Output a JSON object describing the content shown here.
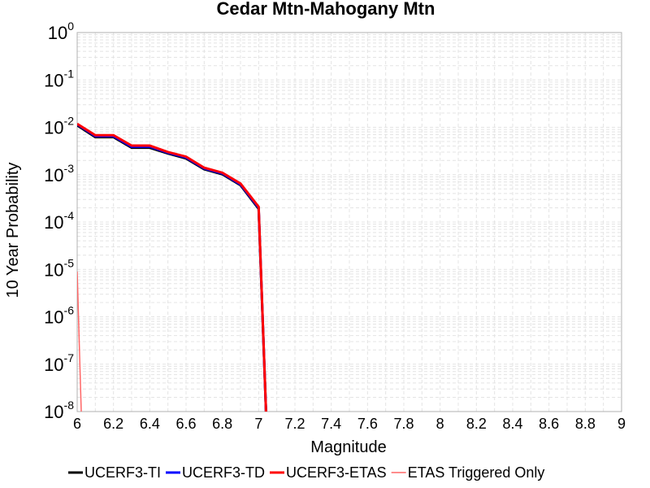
{
  "chart_data": {
    "type": "line",
    "title": "Cedar Mtn-Mahogany Mtn",
    "xlabel": "Magnitude",
    "ylabel": "10 Year Probability",
    "xlim": [
      6,
      9
    ],
    "ylim": [
      1e-08,
      1
    ],
    "yscale": "log",
    "grid": true,
    "legend_position": "bottom",
    "x_ticks": [
      "6",
      "6.2",
      "6.4",
      "6.6",
      "6.8",
      "7",
      "7.2",
      "7.4",
      "7.6",
      "7.8",
      "8",
      "8.2",
      "8.4",
      "8.6",
      "8.8",
      "9"
    ],
    "y_ticks": [
      {
        "base": "10",
        "exp": "0",
        "value": 1
      },
      {
        "base": "10",
        "exp": "-1",
        "value": 0.1
      },
      {
        "base": "10",
        "exp": "-2",
        "value": 0.01
      },
      {
        "base": "10",
        "exp": "-3",
        "value": 0.001
      },
      {
        "base": "10",
        "exp": "-4",
        "value": 0.0001
      },
      {
        "base": "10",
        "exp": "-5",
        "value": 1e-05
      },
      {
        "base": "10",
        "exp": "-6",
        "value": 1e-06
      },
      {
        "base": "10",
        "exp": "-7",
        "value": 1e-07
      },
      {
        "base": "10",
        "exp": "-8",
        "value": 1e-08
      }
    ],
    "series": [
      {
        "name": "UCERF3-TI",
        "color": "#000000",
        "width": 3,
        "x": [
          6.0,
          6.1,
          6.2,
          6.3,
          6.4,
          6.5,
          6.6,
          6.7,
          6.8,
          6.9,
          7.0,
          7.05
        ],
        "y": [
          0.011,
          0.0062,
          0.0062,
          0.0037,
          0.0037,
          0.0028,
          0.0022,
          0.0013,
          0.00102,
          0.0006,
          0.00019,
          1e-09
        ]
      },
      {
        "name": "UCERF3-TD",
        "color": "#0000ff",
        "width": 3,
        "x": [
          6.0,
          6.1,
          6.2,
          6.3,
          6.4,
          6.5,
          6.6,
          6.7,
          6.8,
          6.9,
          7.0,
          7.05
        ],
        "y": [
          0.0115,
          0.0065,
          0.0065,
          0.0039,
          0.0039,
          0.0029,
          0.0023,
          0.00135,
          0.00106,
          0.00062,
          0.0002,
          1e-09
        ]
      },
      {
        "name": "UCERF3-ETAS",
        "color": "#ff0000",
        "width": 3,
        "x": [
          6.0,
          6.1,
          6.2,
          6.3,
          6.4,
          6.5,
          6.6,
          6.7,
          6.8,
          6.9,
          7.0,
          7.05
        ],
        "y": [
          0.0118,
          0.0068,
          0.0068,
          0.0041,
          0.0041,
          0.003,
          0.0024,
          0.0014,
          0.0011,
          0.00065,
          0.00021,
          1e-09
        ]
      },
      {
        "name": "ETAS Triggered Only",
        "color": "#ff6666",
        "width": 1.5,
        "x": [
          6.0,
          6.03
        ],
        "y": [
          9e-06,
          1e-09
        ]
      }
    ]
  }
}
